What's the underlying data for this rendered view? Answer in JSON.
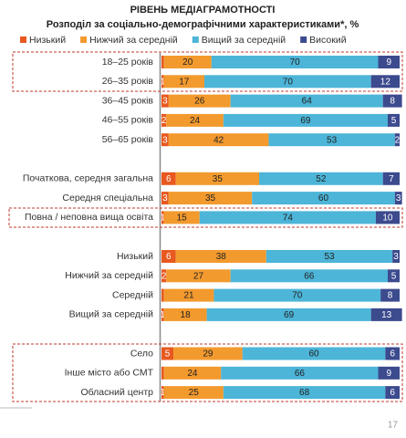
{
  "chart_data": {
    "type": "stacked-bar-horizontal",
    "title": "РІВЕНЬ МЕДІАГРАМОТНОСТІ",
    "subtitle": "Розподіл за соціально-демографічними характеристиками*, %",
    "categories": [
      "18–25 років",
      "26–35 років",
      "36–45 років",
      "46–55 років",
      "56–65 років",
      null,
      "Початкова, середня загальна",
      "Середня спеціальна",
      "Повна / неповна вища освіта",
      null,
      "Низький",
      "Нижчий за середній",
      "Середній",
      "Вищий за середній",
      null,
      "Село",
      "Інше місто або СМТ",
      "Обласний центр"
    ],
    "series": [
      {
        "name": "Низький",
        "color": "#e8581f",
        "values": [
          1,
          1,
          3,
          2,
          3,
          null,
          6,
          3,
          1,
          null,
          6,
          2,
          1,
          1,
          null,
          5,
          1,
          1
        ],
        "value_labels": [
          null,
          "1",
          "3",
          "2",
          "3",
          null,
          "6",
          "3",
          "1",
          null,
          "6",
          "2",
          null,
          "1",
          null,
          "5",
          null,
          "1"
        ]
      },
      {
        "name": "Нижчий за середній",
        "color": "#f39a2e",
        "values": [
          20,
          17,
          26,
          24,
          42,
          null,
          35,
          35,
          15,
          null,
          38,
          27,
          21,
          18,
          null,
          29,
          24,
          25
        ]
      },
      {
        "name": "Вищий за середній",
        "color": "#4cb5d8",
        "values": [
          70,
          70,
          64,
          69,
          53,
          null,
          52,
          60,
          74,
          null,
          53,
          66,
          70,
          69,
          null,
          60,
          66,
          68
        ]
      },
      {
        "name": "Високий",
        "color": "#3c4a8e",
        "values": [
          9,
          12,
          8,
          5,
          2,
          null,
          7,
          3,
          10,
          null,
          3,
          5,
          8,
          13,
          null,
          6,
          9,
          6
        ]
      }
    ]
  },
  "page_number": "17"
}
